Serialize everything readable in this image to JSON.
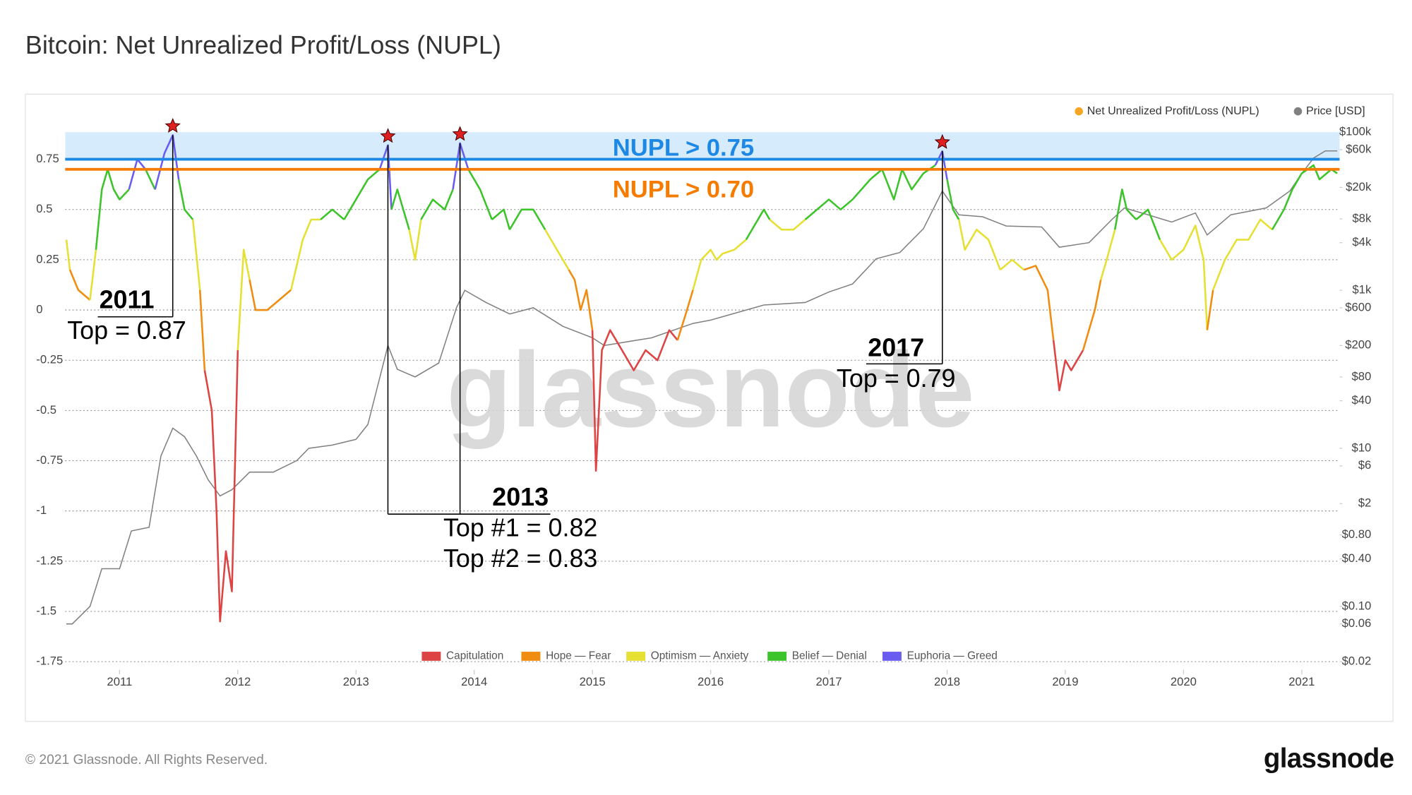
{
  "chart_data": {
    "type": "line",
    "title": "Bitcoin: Net Unrealized Profit/Loss (NUPL)",
    "watermark": "glassnode",
    "xlim": [
      2010.54,
      2021.32
    ],
    "xticks": [
      2011,
      2012,
      2013,
      2014,
      2015,
      2016,
      2017,
      2018,
      2019,
      2020,
      2021
    ],
    "ylim": [
      -1.75,
      0.885
    ],
    "yticks": [
      0.75,
      0.5,
      0.25,
      0,
      -0.25,
      -0.5,
      -0.75,
      -1,
      -1.25,
      -1.5,
      -1.75
    ],
    "y2lim": [
      0.02,
      100000
    ],
    "y2_log": true,
    "y2ticks": [
      {
        "value": 100000,
        "label": "$100k"
      },
      {
        "value": 60000,
        "label": "$60k"
      },
      {
        "value": 20000,
        "label": "$20k"
      },
      {
        "value": 8000,
        "label": "$8k"
      },
      {
        "value": 4000,
        "label": "$4k"
      },
      {
        "value": 1000,
        "label": "$1k"
      },
      {
        "value": 600,
        "label": "$600"
      },
      {
        "value": 200,
        "label": "$200"
      },
      {
        "value": 80,
        "label": "$80"
      },
      {
        "value": 40,
        "label": "$40"
      },
      {
        "value": 10,
        "label": "$10"
      },
      {
        "value": 6,
        "label": "$6"
      },
      {
        "value": 2,
        "label": "$2"
      },
      {
        "value": 0.8,
        "label": "$0.80"
      },
      {
        "value": 0.4,
        "label": "$0.40"
      },
      {
        "value": 0.1,
        "label": "$0.10"
      },
      {
        "value": 0.06,
        "label": "$0.06"
      },
      {
        "value": 0.02,
        "label": "$0.02"
      }
    ],
    "grid": true,
    "legend": "top-right",
    "series": [
      {
        "name": "Net Unrealized Profit/Loss (NUPL)",
        "color": "#f5a623",
        "x": [
          2010.55,
          2010.58,
          2010.65,
          2010.75,
          2010.8,
          2010.85,
          2010.9,
          2010.95,
          2011.0,
          2011.08,
          2011.15,
          2011.22,
          2011.3,
          2011.38,
          2011.45,
          2011.5,
          2011.55,
          2011.62,
          2011.68,
          2011.72,
          2011.78,
          2011.82,
          2011.85,
          2011.9,
          2011.95,
          2012.0,
          2012.05,
          2012.1,
          2012.15,
          2012.25,
          2012.35,
          2012.45,
          2012.55,
          2012.62,
          2012.7,
          2012.8,
          2012.9,
          2013.0,
          2013.1,
          2013.2,
          2013.27,
          2013.3,
          2013.35,
          2013.45,
          2013.5,
          2013.55,
          2013.65,
          2013.75,
          2013.82,
          2013.88,
          2013.95,
          2014.05,
          2014.15,
          2014.25,
          2014.3,
          2014.4,
          2014.5,
          2014.6,
          2014.7,
          2014.8,
          2014.85,
          2014.9,
          2014.95,
          2015.0,
          2015.03,
          2015.08,
          2015.15,
          2015.25,
          2015.35,
          2015.45,
          2015.55,
          2015.65,
          2015.72,
          2015.8,
          2015.85,
          2015.92,
          2016.0,
          2016.05,
          2016.1,
          2016.2,
          2016.3,
          2016.45,
          2016.5,
          2016.6,
          2016.7,
          2016.8,
          2016.9,
          2017.0,
          2017.1,
          2017.2,
          2017.35,
          2017.45,
          2017.55,
          2017.62,
          2017.7,
          2017.8,
          2017.9,
          2017.96,
          2018.0,
          2018.05,
          2018.1,
          2018.15,
          2018.25,
          2018.35,
          2018.45,
          2018.55,
          2018.65,
          2018.75,
          2018.85,
          2018.9,
          2018.95,
          2019.0,
          2019.05,
          2019.15,
          2019.25,
          2019.3,
          2019.35,
          2019.42,
          2019.48,
          2019.52,
          2019.6,
          2019.7,
          2019.8,
          2019.9,
          2020.0,
          2020.1,
          2020.17,
          2020.2,
          2020.25,
          2020.35,
          2020.45,
          2020.55,
          2020.65,
          2020.75,
          2020.85,
          2020.92,
          2021.0,
          2021.1,
          2021.15,
          2021.25,
          2021.3
        ],
        "values": [
          0.35,
          0.2,
          0.1,
          0.05,
          0.3,
          0.6,
          0.7,
          0.6,
          0.55,
          0.6,
          0.75,
          0.7,
          0.6,
          0.78,
          0.87,
          0.65,
          0.5,
          0.45,
          0.1,
          -0.3,
          -0.5,
          -1.0,
          -1.55,
          -1.2,
          -1.4,
          -0.2,
          0.3,
          0.15,
          0.0,
          0.0,
          0.05,
          0.1,
          0.35,
          0.45,
          0.45,
          0.5,
          0.45,
          0.55,
          0.65,
          0.7,
          0.82,
          0.5,
          0.6,
          0.4,
          0.25,
          0.45,
          0.55,
          0.5,
          0.6,
          0.83,
          0.7,
          0.6,
          0.45,
          0.5,
          0.4,
          0.5,
          0.5,
          0.4,
          0.3,
          0.2,
          0.15,
          0.0,
          0.1,
          -0.1,
          -0.8,
          -0.2,
          -0.1,
          -0.2,
          -0.3,
          -0.2,
          -0.25,
          -0.1,
          -0.15,
          0.0,
          0.1,
          0.25,
          0.3,
          0.25,
          0.28,
          0.3,
          0.35,
          0.5,
          0.45,
          0.4,
          0.4,
          0.45,
          0.5,
          0.55,
          0.5,
          0.55,
          0.65,
          0.7,
          0.55,
          0.7,
          0.6,
          0.68,
          0.72,
          0.79,
          0.65,
          0.5,
          0.45,
          0.3,
          0.4,
          0.35,
          0.2,
          0.25,
          0.2,
          0.22,
          0.1,
          -0.15,
          -0.4,
          -0.25,
          -0.3,
          -0.2,
          0.0,
          0.15,
          0.25,
          0.4,
          0.6,
          0.5,
          0.45,
          0.5,
          0.35,
          0.25,
          0.3,
          0.42,
          0.25,
          -0.1,
          0.1,
          0.25,
          0.35,
          0.35,
          0.45,
          0.4,
          0.5,
          0.6,
          0.68,
          0.72,
          0.65,
          0.7,
          0.68
        ]
      },
      {
        "name": "Price [USD]",
        "color": "#808080",
        "axis": "y2",
        "x": [
          2010.55,
          2010.6,
          2010.75,
          2010.85,
          2011.0,
          2011.1,
          2011.25,
          2011.35,
          2011.45,
          2011.55,
          2011.65,
          2011.75,
          2011.85,
          2011.95,
          2012.1,
          2012.3,
          2012.5,
          2012.6,
          2012.8,
          2013.0,
          2013.1,
          2013.27,
          2013.35,
          2013.5,
          2013.7,
          2013.85,
          2013.92,
          2014.1,
          2014.3,
          2014.5,
          2014.75,
          2015.0,
          2015.1,
          2015.5,
          2015.85,
          2016.0,
          2016.45,
          2016.8,
          2017.0,
          2017.2,
          2017.4,
          2017.6,
          2017.8,
          2017.96,
          2018.1,
          2018.3,
          2018.5,
          2018.8,
          2018.95,
          2019.2,
          2019.4,
          2019.5,
          2019.7,
          2019.9,
          2020.1,
          2020.2,
          2020.4,
          2020.7,
          2020.9,
          2021.0,
          2021.1,
          2021.2,
          2021.3
        ],
        "values": [
          0.06,
          0.06,
          0.1,
          0.3,
          0.3,
          0.9,
          1,
          8,
          18,
          14,
          8,
          4,
          2.5,
          3,
          5,
          5,
          7,
          10,
          11,
          13,
          20,
          200,
          100,
          80,
          120,
          600,
          1000,
          700,
          500,
          600,
          350,
          250,
          200,
          250,
          380,
          420,
          650,
          700,
          950,
          1200,
          2500,
          3000,
          6000,
          18000,
          9000,
          8500,
          6500,
          6300,
          3500,
          4000,
          8000,
          11000,
          9000,
          7300,
          9500,
          5000,
          9000,
          11000,
          18000,
          30000,
          47000,
          58000,
          58000
        ]
      }
    ],
    "zones": [
      {
        "name": "Capitulation",
        "color": "#dd4444",
        "from": -1.75
      },
      {
        "name": "Hope — Fear",
        "color": "#f08c10",
        "from": 0
      },
      {
        "name": "Optimism — Anxiety",
        "color": "#e6e033",
        "from": 0.25
      },
      {
        "name": "Belief — Denial",
        "color": "#3cc42a",
        "from": 0.5
      },
      {
        "name": "Euphoria — Greed",
        "color": "#6a5cf0",
        "from": 0.75
      }
    ],
    "thresholds": [
      {
        "label": "NUPL > 0.75",
        "value": 0.75,
        "color": "#1e88e5",
        "band": "#d6ebfb"
      },
      {
        "label": "NUPL > 0.70",
        "value": 0.7,
        "color": "#f57c00"
      }
    ],
    "annotations": [
      {
        "title": "2011",
        "labels": [
          "Top = 0.87"
        ],
        "tops": [
          {
            "x": 2011.45,
            "value": 0.87
          }
        ]
      },
      {
        "title": "2013",
        "labels": [
          "Top #1 = 0.82",
          "Top #2 = 0.83"
        ],
        "tops": [
          {
            "x": 2013.27,
            "value": 0.82
          },
          {
            "x": 2013.88,
            "value": 0.83
          }
        ]
      },
      {
        "title": "2017",
        "labels": [
          "Top = 0.79"
        ],
        "tops": [
          {
            "x": 2017.96,
            "value": 0.79
          }
        ]
      }
    ]
  },
  "footer": {
    "copyright": "© 2021 Glassnode. All Rights Reserved.",
    "logo": "glassnode"
  }
}
